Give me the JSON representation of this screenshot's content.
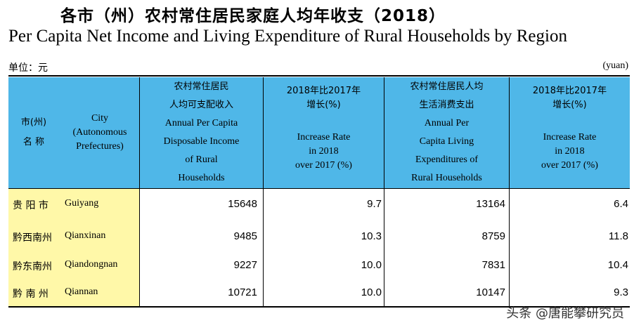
{
  "title_cn": "各市（州）农村常住居民家庭人均年收支（2018）",
  "title_en": "Per Capita Net Income and Living Expenditure of Rural Households by Region",
  "unit_cn": "单位：元",
  "unit_en": "(yuan)",
  "header": {
    "city_cn": [
      "市(州)",
      "名 称"
    ],
    "city_en": [
      "City",
      "(Autonomous",
      "Prefectures)"
    ],
    "income_cn": [
      "农村常住居民",
      "人均可支配收入"
    ],
    "income_en": [
      "Annual Per Capita",
      "Disposable Income",
      "of Rural",
      "Households"
    ],
    "income_growth_cn": [
      "2018年比2017年",
      "增长(%)"
    ],
    "income_growth_en": [
      "Increase Rate",
      "in 2018",
      "over 2017 (%)"
    ],
    "expend_cn": [
      "农村常住居民人均",
      "生活消费支出"
    ],
    "expend_en": [
      "Annual Per",
      "Capita Living",
      "Expenditures of",
      "Rural Households"
    ],
    "expend_growth_cn": [
      "2018年比2017年",
      "增长(%)"
    ],
    "expend_growth_en": [
      "Increase Rate",
      "in 2018",
      "over 2017 (%)"
    ]
  },
  "rows": [
    {
      "cn": "贵 阳 市",
      "en": "Guiyang",
      "income": "15648",
      "income_growth": "9.7",
      "expend": "13164",
      "expend_growth": "6.4"
    },
    {
      "cn": "黔西南州",
      "en": "Qianxinan",
      "income": "9485",
      "income_growth": "10.3",
      "expend": "8759",
      "expend_growth": "11.8"
    },
    {
      "cn": "黔东南州",
      "en": "Qiandongnan",
      "income": "9227",
      "income_growth": "10.0",
      "expend": "7831",
      "expend_growth": "10.4"
    },
    {
      "cn": "黔 南 州",
      "en": "Qiannan",
      "income": "10721",
      "income_growth": "10.0",
      "expend": "10147",
      "expend_growth": "9.3"
    }
  ],
  "watermark": "头条 @唐能攀研究员",
  "colors": {
    "header_bg": "#4fb7e8",
    "city_bg": "#fff8a8"
  }
}
